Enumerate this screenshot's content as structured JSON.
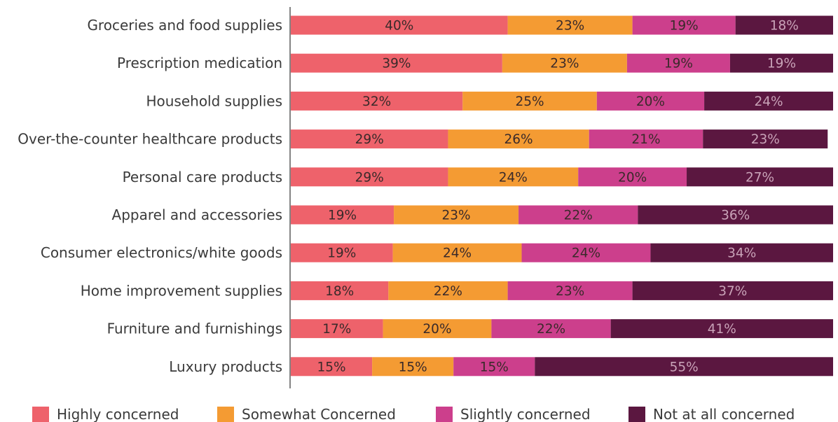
{
  "chart_data": {
    "type": "bar",
    "orientation": "horizontal",
    "stacked": true,
    "title": "",
    "xlabel": "",
    "ylabel": "",
    "xlim": [
      0,
      100
    ],
    "grid": false,
    "legend_position": "bottom",
    "categories": [
      "Groceries and food supplies",
      "Prescription medication",
      "Household supplies",
      "Over-the-counter healthcare products",
      "Personal care products",
      "Apparel and accessories",
      "Consumer electronics/white goods",
      "Home improvement supplies",
      "Furniture and furnishings",
      "Luxury products"
    ],
    "series": [
      {
        "name": "Highly concerned",
        "color": "#ee626b",
        "label_color": "#3a2a2a",
        "values": [
          40,
          39,
          32,
          29,
          29,
          19,
          19,
          18,
          17,
          15
        ],
        "labels": [
          "40%",
          "39%",
          "32%",
          "29%",
          "29%",
          "19%",
          "19%",
          "18%",
          "17%",
          "15%"
        ]
      },
      {
        "name": "Somewhat Concerned",
        "color": "#f49b33",
        "label_color": "#3a2a2a",
        "values": [
          23,
          23,
          25,
          26,
          24,
          23,
          24,
          22,
          20,
          15
        ],
        "labels": [
          "23%",
          "23%",
          "25%",
          "26%",
          "24%",
          "23%",
          "24%",
          "22%",
          "20%",
          "15%"
        ]
      },
      {
        "name": "Slightly concerned",
        "color": "#cc3f8c",
        "label_color": "#3a2a2a",
        "values": [
          19,
          19,
          20,
          21,
          20,
          22,
          24,
          23,
          22,
          15
        ],
        "labels": [
          "19%",
          "19%",
          "20%",
          "21%",
          "20%",
          "22%",
          "24%",
          "23%",
          "22%",
          "15%"
        ]
      },
      {
        "name": "Not at all concerned",
        "color": "#5b1740",
        "label_color": "#c9a3b8",
        "values": [
          18,
          19,
          24,
          23,
          27,
          36,
          34,
          37,
          41,
          55
        ],
        "labels": [
          "18%",
          "19%",
          "24%",
          "23%",
          "27%",
          "36%",
          "34%",
          "37%",
          "41%",
          "55%"
        ]
      }
    ]
  }
}
